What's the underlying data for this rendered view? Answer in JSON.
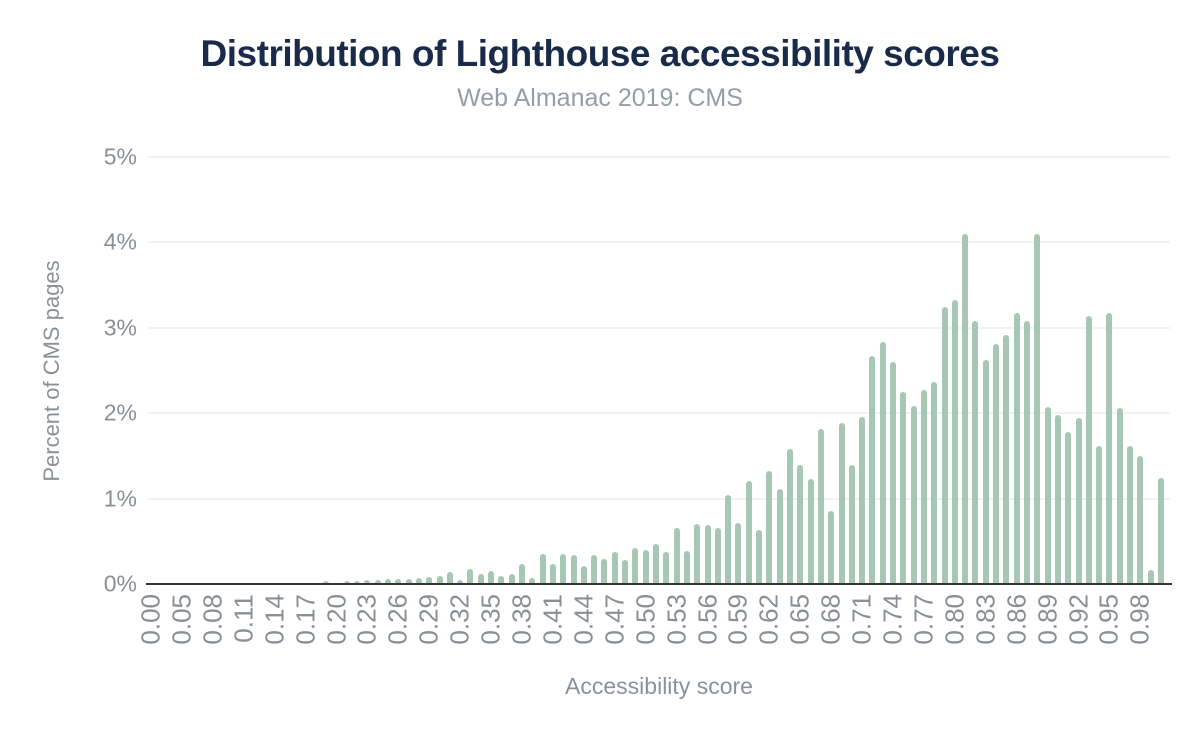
{
  "chart_data": {
    "type": "bar",
    "title": "Distribution of Lighthouse accessibility scores",
    "subtitle": "Web Almanac 2019: CMS",
    "xlabel": "Accessibility score",
    "ylabel": "Percent of CMS pages",
    "ylim": [
      0,
      5
    ],
    "ytick_labels": [
      "0%",
      "1%",
      "2%",
      "3%",
      "4%",
      "5%"
    ],
    "xtick_labels": [
      "0.00",
      "0.05",
      "0.08",
      "0.11",
      "0.14",
      "0.17",
      "0.20",
      "0.23",
      "0.26",
      "0.29",
      "0.32",
      "0.35",
      "0.38",
      "0.41",
      "0.44",
      "0.47",
      "0.50",
      "0.53",
      "0.56",
      "0.59",
      "0.62",
      "0.65",
      "0.68",
      "0.71",
      "0.74",
      "0.77",
      "0.80",
      "0.83",
      "0.86",
      "0.89",
      "0.92",
      "0.95",
      "0.98"
    ],
    "xtick_every": 3,
    "grid": true,
    "legend": false,
    "bar_color": "#a6c7b3",
    "axis_line_color": "#333639",
    "gridline_color": "#f2f2f3",
    "title_color": "#1a2b49",
    "label_color": "#898f97",
    "categories": [
      "0.00",
      "0.03",
      "0.04",
      "0.05",
      "0.06",
      "0.07",
      "0.08",
      "0.09",
      "0.10",
      "0.11",
      "0.12",
      "0.13",
      "0.14",
      "0.15",
      "0.16",
      "0.17",
      "0.18",
      "0.19",
      "0.20",
      "0.21",
      "0.22",
      "0.23",
      "0.24",
      "0.25",
      "0.26",
      "0.27",
      "0.28",
      "0.29",
      "0.30",
      "0.31",
      "0.32",
      "0.33",
      "0.34",
      "0.35",
      "0.36",
      "0.37",
      "0.38",
      "0.39",
      "0.40",
      "0.41",
      "0.42",
      "0.43",
      "0.44",
      "0.45",
      "0.46",
      "0.47",
      "0.48",
      "0.49",
      "0.50",
      "0.51",
      "0.52",
      "0.53",
      "0.54",
      "0.55",
      "0.56",
      "0.57",
      "0.58",
      "0.59",
      "0.60",
      "0.61",
      "0.62",
      "0.63",
      "0.64",
      "0.65",
      "0.66",
      "0.67",
      "0.68",
      "0.69",
      "0.70",
      "0.71",
      "0.72",
      "0.73",
      "0.74",
      "0.75",
      "0.76",
      "0.77",
      "0.78",
      "0.79",
      "0.80",
      "0.81",
      "0.82",
      "0.83",
      "0.84",
      "0.85",
      "0.86",
      "0.87",
      "0.88",
      "0.89",
      "0.90",
      "0.91",
      "0.92",
      "0.93",
      "0.94",
      "0.95",
      "0.96",
      "0.97",
      "0.98",
      "0.99",
      "1.00"
    ],
    "values": [
      0,
      0,
      0,
      0,
      0,
      0,
      0,
      0,
      0,
      0,
      0,
      0,
      0,
      0,
      0,
      0,
      0,
      0.04,
      0,
      0.04,
      0.04,
      0.05,
      0.05,
      0.06,
      0.06,
      0.06,
      0.07,
      0.08,
      0.09,
      0.14,
      0.05,
      0.17,
      0.12,
      0.15,
      0.09,
      0.12,
      0.24,
      0.07,
      0.35,
      0.23,
      0.35,
      0.34,
      0.21,
      0.34,
      0.29,
      0.38,
      0.28,
      0.42,
      0.4,
      0.47,
      0.38,
      0.65,
      0.39,
      0.7,
      0.69,
      0.65,
      1.04,
      0.71,
      1.21,
      0.63,
      1.32,
      1.11,
      1.58,
      1.39,
      1.23,
      1.81,
      0.86,
      1.88,
      1.39,
      1.95,
      2.67,
      2.83,
      2.6,
      2.25,
      2.09,
      2.27,
      2.37,
      3.24,
      3.33,
      4.1,
      3.08,
      2.62,
      2.81,
      2.92,
      3.17,
      3.08,
      4.1,
      2.07,
      1.98,
      1.78,
      1.94,
      3.14,
      1.62,
      3.17,
      2.06,
      1.62,
      1.5,
      0.16,
      1.24
    ]
  }
}
